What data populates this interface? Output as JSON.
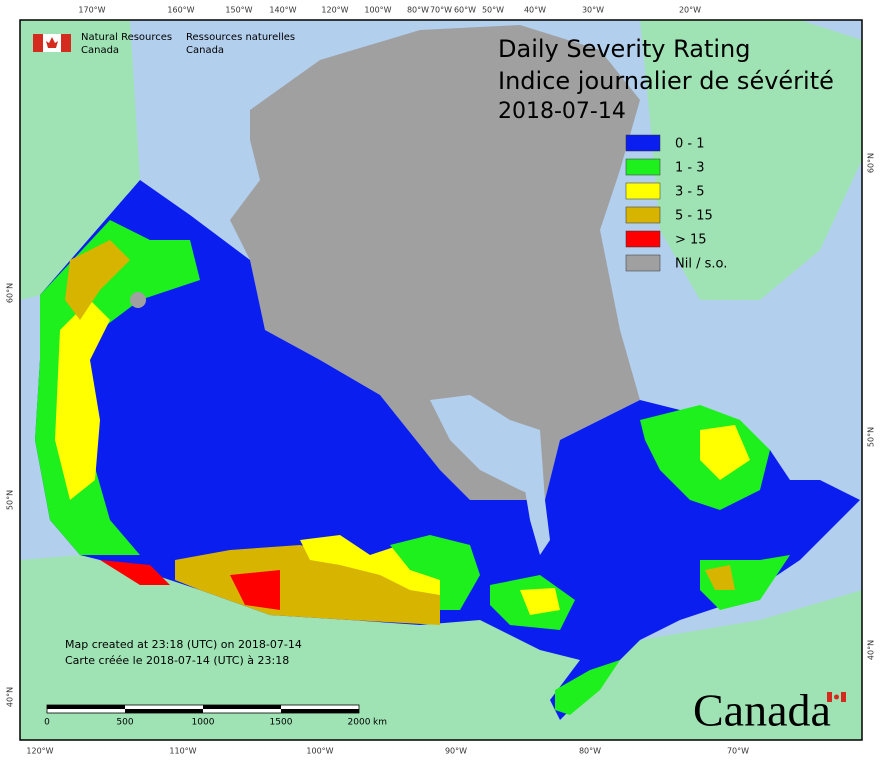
{
  "header": {
    "agency_en_1": "Natural Resources",
    "agency_en_2": "Canada",
    "agency_fr_1": "Ressources naturelles",
    "agency_fr_2": "Canada"
  },
  "title": {
    "line1": "Daily Severity Rating",
    "line2": "Indice journalier de sévérité",
    "date": "2018-07-14"
  },
  "legend": [
    {
      "label": "0 - 1",
      "color": "#0a1ef0"
    },
    {
      "label": "1 - 3",
      "color": "#1ef01e"
    },
    {
      "label": "3 - 5",
      "color": "#ffff00"
    },
    {
      "label": "5 - 15",
      "color": "#d7b400"
    },
    {
      "label": "> 15",
      "color": "#ff0000"
    },
    {
      "label": "Nil / s.o.",
      "color": "#a0a0a0"
    }
  ],
  "graticule": {
    "top": [
      "170°W",
      "160°W",
      "150°W",
      "140°W",
      "120°W",
      "100°W",
      "80°W",
      "70°W",
      "60°W",
      "50°W",
      "40°W",
      "30°W",
      "20°W"
    ],
    "bottom": [
      "120°W",
      "110°W",
      "100°W",
      "90°W",
      "80°W",
      "70°W"
    ],
    "left": [
      "60°N",
      "50°N",
      "40°N"
    ],
    "right": [
      "60°N",
      "50°N",
      "40°N"
    ]
  },
  "notes": [
    "Map created at 23:18 (UTC) on 2018-07-14",
    "Carte créée le 2018-07-14 (UTC) à 23:18"
  ],
  "scale": {
    "ticks": [
      0,
      500,
      1000,
      1500,
      2000
    ],
    "unit": "km"
  },
  "wordmark": "Canada"
}
